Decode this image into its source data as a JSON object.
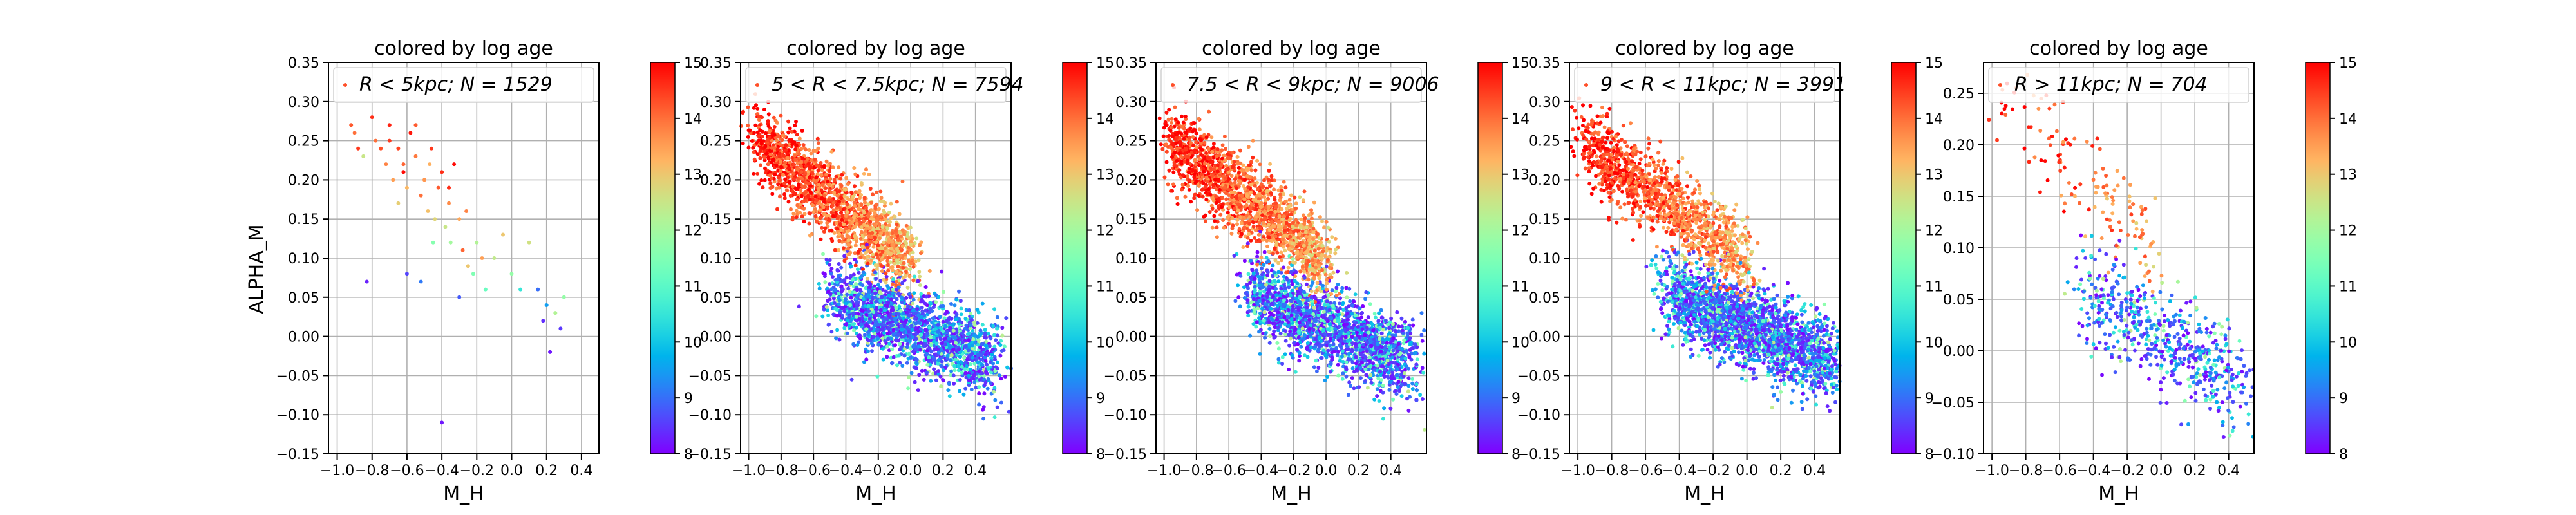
{
  "figure": {
    "ylabel": "ALPHA_M",
    "colorbar_cmap": "rainbow",
    "point_marker": "small dots",
    "grid": true
  },
  "chart_data": [
    {
      "type": "scatter",
      "title": "colored by log age",
      "xlabel": "M_H",
      "ylabel": "ALPHA_M",
      "legend": {
        "prefix": "R < 5kpc;  N = ",
        "count": "1529",
        "placement": "top"
      },
      "xlim": [
        -1.05,
        0.5
      ],
      "ylim": [
        -0.15,
        0.35
      ],
      "xticks": [
        "-1.0",
        "-0.8",
        "-0.6",
        "-0.4",
        "-0.2",
        "0.0",
        "0.2",
        "0.4"
      ],
      "yticks": [
        "-0.15",
        "-0.10",
        "-0.05",
        "0.00",
        "0.05",
        "0.10",
        "0.15",
        "0.20",
        "0.25",
        "0.30",
        "0.35"
      ],
      "colorbar": {
        "range": [
          8,
          15
        ],
        "ticks": [
          "8",
          "9",
          "10",
          "11",
          "12",
          "13",
          "14",
          "15"
        ]
      },
      "points": [
        [
          -0.92,
          0.27,
          14.2
        ],
        [
          -0.88,
          0.24,
          14.5
        ],
        [
          -0.85,
          0.23,
          12.5
        ],
        [
          -0.8,
          0.28,
          14.6
        ],
        [
          -0.78,
          0.25,
          14.0
        ],
        [
          -0.75,
          0.24,
          14.3
        ],
        [
          -0.72,
          0.22,
          13.8
        ],
        [
          -0.7,
          0.27,
          14.7
        ],
        [
          -0.68,
          0.2,
          13.5
        ],
        [
          -0.65,
          0.24,
          14.4
        ],
        [
          -0.62,
          0.22,
          14.1
        ],
        [
          -0.6,
          0.19,
          13.2
        ],
        [
          -0.58,
          0.26,
          14.8
        ],
        [
          -0.55,
          0.23,
          13.9
        ],
        [
          -0.52,
          0.18,
          14.0
        ],
        [
          -0.5,
          0.2,
          13.6
        ],
        [
          -0.48,
          0.16,
          13.1
        ],
        [
          -0.46,
          0.24,
          14.5
        ],
        [
          -0.44,
          0.15,
          12.8
        ],
        [
          -0.42,
          0.19,
          14.2
        ],
        [
          -0.4,
          0.21,
          14.6
        ],
        [
          -0.38,
          0.14,
          12.5
        ],
        [
          -0.36,
          0.17,
          13.7
        ],
        [
          -0.35,
          0.12,
          12.0
        ],
        [
          -0.33,
          0.22,
          14.9
        ],
        [
          -0.3,
          0.15,
          13.4
        ],
        [
          -0.28,
          0.11,
          14.1
        ],
        [
          -0.25,
          0.09,
          13.0
        ],
        [
          -0.22,
          0.08,
          11.5
        ],
        [
          -0.2,
          0.12,
          12.2
        ],
        [
          -0.17,
          0.1,
          13.5
        ],
        [
          -0.15,
          0.06,
          11.2
        ],
        [
          -0.1,
          0.1,
          12.4
        ],
        [
          -0.05,
          0.13,
          13.0
        ],
        [
          0.0,
          0.08,
          11.8
        ],
        [
          0.05,
          0.06,
          10.5
        ],
        [
          0.1,
          0.12,
          12.6
        ],
        [
          0.15,
          0.06,
          9.0
        ],
        [
          0.18,
          0.02,
          8.4
        ],
        [
          0.2,
          0.04,
          9.5
        ],
        [
          0.22,
          -0.02,
          8.2
        ],
        [
          0.25,
          0.03,
          12.2
        ],
        [
          0.28,
          0.01,
          8.5
        ],
        [
          0.3,
          0.05,
          11.8
        ],
        [
          -0.83,
          0.07,
          8.3
        ],
        [
          -0.6,
          0.08,
          8.6
        ],
        [
          -0.52,
          0.07,
          9.1
        ],
        [
          -0.4,
          -0.11,
          8.2
        ],
        [
          -0.3,
          0.05,
          8.8
        ],
        [
          -0.62,
          0.21,
          14.9
        ],
        [
          -0.7,
          0.25,
          14.5
        ],
        [
          -0.9,
          0.26,
          14.0
        ],
        [
          -0.55,
          0.27,
          14.2
        ],
        [
          -0.47,
          0.22,
          13.3
        ],
        [
          -0.36,
          0.19,
          14.6
        ],
        [
          -0.26,
          0.16,
          13.8
        ],
        [
          -0.45,
          0.12,
          11.6
        ],
        [
          -0.65,
          0.17,
          12.9
        ]
      ]
    },
    {
      "type": "scatter",
      "title": "colored by log age",
      "xlabel": "M_H",
      "ylabel": "",
      "legend": {
        "prefix": "5 < R < 7.5kpc;  N = ",
        "count": "7594",
        "placement": "top"
      },
      "xlim": [
        -1.05,
        0.62
      ],
      "ylim": [
        -0.15,
        0.35
      ],
      "xticks": [
        "-1.0",
        "-0.8",
        "-0.6",
        "-0.4",
        "-0.2",
        "0.0",
        "0.2",
        "0.4"
      ],
      "yticks": [
        "-0.15",
        "-0.10",
        "-0.05",
        "0.00",
        "0.05",
        "0.10",
        "0.15",
        "0.20",
        "0.25",
        "0.30",
        "0.35"
      ],
      "colorbar": {
        "range": [
          8,
          15
        ],
        "ticks": [
          "8",
          "9",
          "10",
          "11",
          "12",
          "13",
          "14",
          "15"
        ]
      },
      "dense": true
    },
    {
      "type": "scatter",
      "title": "colored by log age",
      "xlabel": "M_H",
      "ylabel": "",
      "legend": {
        "prefix": "7.5 < R < 9kpc;  N = ",
        "count": "9006",
        "placement": "top"
      },
      "xlim": [
        -1.05,
        0.62
      ],
      "ylim": [
        -0.15,
        0.35
      ],
      "xticks": [
        "-1.0",
        "-0.8",
        "-0.6",
        "-0.4",
        "-0.2",
        "0.0",
        "0.2",
        "0.4"
      ],
      "yticks": [
        "-0.15",
        "-0.10",
        "-0.05",
        "0.00",
        "0.05",
        "0.10",
        "0.15",
        "0.20",
        "0.25",
        "0.30",
        "0.35"
      ],
      "colorbar": {
        "range": [
          8,
          15
        ],
        "ticks": [
          "8",
          "9",
          "10",
          "11",
          "12",
          "13",
          "14",
          "15"
        ]
      },
      "dense": true
    },
    {
      "type": "scatter",
      "title": "colored by log age",
      "xlabel": "M_H",
      "ylabel": "",
      "legend": {
        "prefix": "9 < R < 11kpc;  N = ",
        "count": "3991",
        "placement": "top"
      },
      "xlim": [
        -1.05,
        0.55
      ],
      "ylim": [
        -0.15,
        0.35
      ],
      "xticks": [
        "-1.0",
        "-0.8",
        "-0.6",
        "-0.4",
        "-0.2",
        "0.0",
        "0.2",
        "0.4"
      ],
      "yticks": [
        "-0.15",
        "-0.10",
        "-0.05",
        "0.00",
        "0.05",
        "0.10",
        "0.15",
        "0.20",
        "0.25",
        "0.30",
        "0.35"
      ],
      "colorbar": {
        "range": [
          8,
          15
        ],
        "ticks": [
          "8",
          "9",
          "10",
          "11",
          "12",
          "13",
          "14",
          "15"
        ]
      },
      "dense": true
    },
    {
      "type": "scatter",
      "title": "colored by log age",
      "xlabel": "M_H",
      "ylabel": "",
      "legend": {
        "prefix": "R > 11kpc;  N = ",
        "count": "704",
        "placement": "top"
      },
      "xlim": [
        -1.05,
        0.55
      ],
      "ylim": [
        -0.1,
        0.28
      ],
      "xticks": [
        "-1.0",
        "-0.8",
        "-0.6",
        "-0.4",
        "-0.2",
        "0.0",
        "0.2",
        "0.4"
      ],
      "yticks": [
        "-0.10",
        "-0.05",
        "0.00",
        "0.05",
        "0.10",
        "0.15",
        "0.20",
        "0.25"
      ],
      "colorbar": {
        "range": [
          8,
          15
        ],
        "ticks": [
          "8",
          "9",
          "10",
          "11",
          "12",
          "13",
          "14",
          "15"
        ]
      },
      "dense": true
    }
  ]
}
